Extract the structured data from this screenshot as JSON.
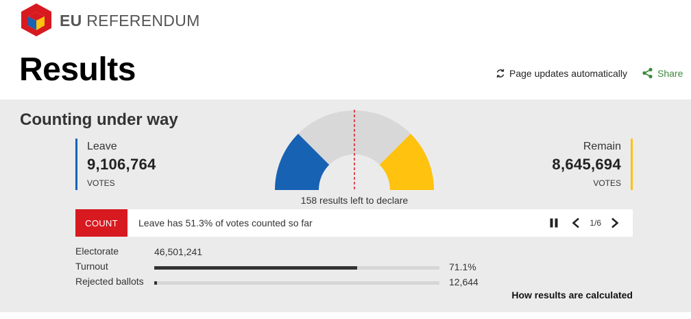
{
  "header": {
    "brand_bold": "EU",
    "brand_rest": "REFERENDUM",
    "title": "Results",
    "updates_label": "Page updates automatically",
    "share_label": "Share"
  },
  "panel": {
    "status_heading": "Counting under way",
    "leave": {
      "name": "Leave",
      "votes": "9,106,764",
      "unit": "VOTES",
      "color": "#1762b3"
    },
    "remain": {
      "name": "Remain",
      "votes": "8,645,694",
      "unit": "VOTES",
      "color": "#ffc20e"
    },
    "gauge": {
      "leave_share": 0.513,
      "declared_fraction_leave": 0.25,
      "declared_fraction_remain": 0.25
    },
    "left_to_declare": "158 results left to declare",
    "ticker": {
      "badge": "COUNT",
      "message": "Leave has 51.3% of votes counted so far",
      "page_indicator": "1/6"
    },
    "stats": {
      "electorate_label": "Electorate",
      "electorate_value": "46,501,241",
      "turnout_label": "Turnout",
      "turnout_value": "71.1%",
      "turnout_fraction": 0.711,
      "rejected_label": "Rejected ballots",
      "rejected_value": "12,644",
      "rejected_fraction": 0.01
    },
    "how_calculated_link": "How results are calculated"
  },
  "icons": {
    "logo": "referendum-cube-logo",
    "updates": "refresh-icon",
    "share": "share-icon",
    "pause": "pause-icon",
    "prev": "chevron-left-icon",
    "next": "chevron-right-icon"
  }
}
